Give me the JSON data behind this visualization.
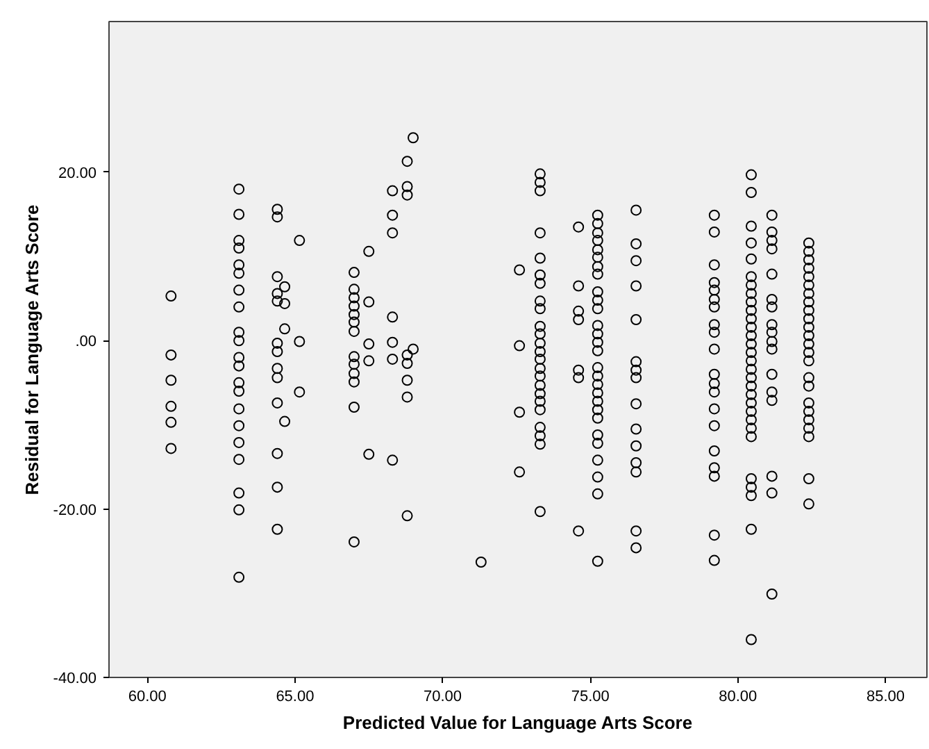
{
  "chart_data": {
    "type": "scatter",
    "xlabel": "Predicted Value for Language Arts Score",
    "ylabel": "Residual for Language Arts Score",
    "marker": "circle",
    "grid": false,
    "xlim": [
      58.7,
      86.4
    ],
    "ylim": [
      -40,
      37.9
    ],
    "xticks": [
      {
        "value": 60,
        "label": "60.00"
      },
      {
        "value": 65,
        "label": "65.00"
      },
      {
        "value": 70,
        "label": "70.00"
      },
      {
        "value": 75,
        "label": "75.00"
      },
      {
        "value": 80,
        "label": "80.00"
      },
      {
        "value": 85,
        "label": "85.00"
      }
    ],
    "yticks": [
      {
        "value": -40,
        "label": "-40.00"
      },
      {
        "value": -20,
        "label": "-20.00"
      },
      {
        "value": 0,
        "label": ".00"
      },
      {
        "value": 20,
        "label": "20.00"
      }
    ],
    "series": [
      {
        "color": "#000000",
        "x": [
          60.8,
          60.8,
          60.8,
          60.8,
          60.8,
          60.8
        ],
        "values": [
          5.3,
          -1.7,
          -4.7,
          -7.8,
          -9.7,
          -12.8
        ]
      },
      {
        "color": "#000000",
        "x": [
          63.1,
          63.1,
          63.1,
          63.1,
          63.1,
          63.1,
          63.1,
          63.1,
          63.1,
          63.1,
          63.1,
          63.1,
          63.1,
          63.1,
          63.1,
          63.1,
          63.1,
          63.1,
          63.1,
          63.1,
          63.1
        ],
        "values": [
          18.0,
          15.0,
          11.9,
          11.0,
          9.0,
          8.0,
          6.0,
          4.0,
          1.0,
          0,
          -2.0,
          -3.0,
          -5.0,
          -6.0,
          -8.1,
          -10.1,
          -12.1,
          -14.1,
          -18.1,
          -20.1,
          -28.1
        ]
      },
      {
        "color": "#000000",
        "x": [
          64.4,
          64.4,
          64.4,
          64.4,
          64.4,
          64.4,
          64.4,
          64.4,
          64.4,
          64.4,
          64.4,
          64.4,
          64.4
        ],
        "values": [
          15.6,
          14.7,
          7.6,
          5.6,
          4.7,
          -0.3,
          -1.3,
          -3.3,
          -4.4,
          -7.4,
          -13.4,
          -17.4,
          -22.4
        ]
      },
      {
        "color": "#000000",
        "x": [
          64.65,
          64.65,
          64.65,
          64.65
        ],
        "values": [
          6.4,
          4.4,
          1.4,
          -9.6
        ]
      },
      {
        "color": "#000000",
        "x": [
          65.15,
          65.15,
          65.15
        ],
        "values": [
          11.9,
          -0.1,
          -6.1
        ]
      },
      {
        "color": "#000000",
        "x": [
          67.0,
          67.0,
          67.0,
          67.0,
          67.0,
          67.0,
          67.0,
          67.0,
          67.0,
          67.0,
          67.0,
          67.0,
          67.0
        ],
        "values": [
          8.1,
          6.1,
          5.1,
          4.1,
          3.1,
          2.2,
          1.1,
          -1.9,
          -2.8,
          -3.9,
          -4.9,
          -7.9,
          -23.9
        ]
      },
      {
        "color": "#000000",
        "x": [
          67.5,
          67.5,
          67.5,
          67.5,
          67.5
        ],
        "values": [
          10.6,
          4.6,
          -0.4,
          -2.4,
          -13.5
        ]
      },
      {
        "color": "#000000",
        "x": [
          68.3,
          68.3,
          68.3,
          68.3,
          68.3,
          68.3,
          68.3
        ],
        "values": [
          17.8,
          14.9,
          12.8,
          2.8,
          -0.2,
          -2.2,
          -14.2
        ]
      },
      {
        "color": "#000000",
        "x": [
          68.8,
          68.8,
          68.8,
          68.8,
          68.8,
          68.8,
          68.8,
          68.8
        ],
        "values": [
          21.3,
          18.3,
          17.3,
          -1.7,
          -2.7,
          -4.7,
          -6.7,
          -20.8
        ]
      },
      {
        "color": "#000000",
        "x": [
          69.0,
          69.0
        ],
        "values": [
          24.1,
          -1.0
        ]
      },
      {
        "color": "#000000",
        "x": [
          71.3
        ],
        "values": [
          -26.3
        ]
      },
      {
        "color": "#000000",
        "x": [
          72.6,
          72.6,
          72.6,
          72.6
        ],
        "values": [
          8.4,
          -0.6,
          -8.5,
          -15.6
        ]
      },
      {
        "color": "#000000",
        "x": [
          73.3,
          73.3,
          73.3,
          73.3,
          73.3,
          73.3,
          73.3,
          73.3,
          73.3,
          73.3,
          73.3,
          73.3,
          73.3,
          73.3,
          73.3,
          73.3,
          73.3,
          73.3,
          73.3,
          73.3,
          73.3,
          73.3,
          73.3,
          73.3
        ],
        "values": [
          19.8,
          18.8,
          17.8,
          12.8,
          9.8,
          7.8,
          6.8,
          4.7,
          3.8,
          1.7,
          0.8,
          -0.3,
          -1.3,
          -2.2,
          -3.3,
          -4.2,
          -5.3,
          -6.3,
          -7.2,
          -8.2,
          -10.3,
          -11.3,
          -12.3,
          -20.3
        ]
      },
      {
        "color": "#000000",
        "x": [
          74.6,
          74.6,
          74.6,
          74.6,
          74.6,
          74.6,
          74.6
        ],
        "values": [
          13.5,
          6.5,
          3.5,
          2.5,
          -3.5,
          -4.4,
          -22.6
        ]
      },
      {
        "color": "#000000",
        "x": [
          75.25,
          75.25,
          75.25,
          75.25,
          75.25,
          75.25,
          75.25,
          75.25,
          75.25,
          75.25,
          75.25,
          75.25,
          75.25,
          75.25,
          75.25,
          75.25,
          75.25,
          75.25,
          75.25,
          75.25,
          75.25,
          75.25,
          75.25,
          75.25,
          75.25,
          75.25,
          75.25,
          75.25
        ],
        "values": [
          14.9,
          13.9,
          12.8,
          11.9,
          10.8,
          9.9,
          8.8,
          7.9,
          5.8,
          4.8,
          3.8,
          1.8,
          0.8,
          -0.2,
          -1.2,
          -3.2,
          -4.2,
          -5.2,
          -6.2,
          -7.2,
          -8.2,
          -9.2,
          -11.2,
          -12.2,
          -14.2,
          -16.2,
          -18.2,
          -26.2
        ]
      },
      {
        "color": "#000000",
        "x": [
          76.55,
          76.55,
          76.55,
          76.55,
          76.55,
          76.55,
          76.55,
          76.55,
          76.55,
          76.55,
          76.55,
          76.55,
          76.55,
          76.55,
          76.55
        ],
        "values": [
          15.5,
          11.5,
          9.5,
          6.5,
          2.5,
          -2.5,
          -3.5,
          -4.4,
          -7.5,
          -10.5,
          -12.5,
          -14.5,
          -15.6,
          -22.6,
          -24.6
        ]
      },
      {
        "color": "#000000",
        "x": [
          79.2,
          79.2,
          79.2,
          79.2,
          79.2,
          79.2,
          79.2,
          79.2,
          79.2,
          79.2,
          79.2,
          79.2,
          79.2,
          79.2,
          79.2,
          79.2,
          79.2,
          79.2,
          79.2,
          79.2
        ],
        "values": [
          14.9,
          12.9,
          9.0,
          6.9,
          6.0,
          4.9,
          4.0,
          1.9,
          1.0,
          -1.0,
          -4.0,
          -5.1,
          -6.1,
          -8.1,
          -10.1,
          -13.1,
          -15.1,
          -16.1,
          -23.1,
          -26.1
        ]
      },
      {
        "color": "#000000",
        "x": [
          80.45,
          80.45,
          80.45,
          80.45,
          80.45,
          80.45,
          80.45,
          80.45,
          80.45,
          80.45,
          80.45,
          80.45,
          80.45,
          80.45,
          80.45,
          80.45,
          80.45,
          80.45,
          80.45,
          80.45,
          80.45,
          80.45,
          80.45,
          80.45,
          80.45,
          80.45,
          80.45,
          80.45,
          80.45,
          80.45
        ],
        "values": [
          19.7,
          17.6,
          13.6,
          11.6,
          9.7,
          7.6,
          6.6,
          5.6,
          4.6,
          3.6,
          2.6,
          1.6,
          0.6,
          -0.4,
          -1.4,
          -2.4,
          -3.4,
          -4.4,
          -5.4,
          -6.4,
          -7.4,
          -8.4,
          -9.4,
          -10.4,
          -11.4,
          -16.4,
          -17.4,
          -18.4,
          -22.4,
          -35.5
        ]
      },
      {
        "color": "#000000",
        "x": [
          81.15,
          81.15,
          81.15,
          81.15,
          81.15,
          81.15,
          81.15,
          81.15,
          81.15,
          81.15,
          81.15,
          81.15,
          81.15,
          81.15,
          81.15,
          81.15,
          81.15
        ],
        "values": [
          14.9,
          12.9,
          11.9,
          10.9,
          7.9,
          4.9,
          4.0,
          1.9,
          1.0,
          -0.1,
          -1.0,
          -4.0,
          -6.1,
          -7.1,
          -16.1,
          -18.1,
          -30.1
        ]
      },
      {
        "color": "#000000",
        "x": [
          82.4,
          82.4,
          82.4,
          82.4,
          82.4,
          82.4,
          82.4,
          82.4,
          82.4,
          82.4,
          82.4,
          82.4,
          82.4,
          82.4,
          82.4,
          82.4,
          82.4,
          82.4,
          82.4,
          82.4,
          82.4,
          82.4,
          82.4,
          82.4
        ],
        "values": [
          11.6,
          10.6,
          9.6,
          8.6,
          7.6,
          6.6,
          5.6,
          4.6,
          3.6,
          2.6,
          1.6,
          0.6,
          -0.4,
          -1.4,
          -2.4,
          -4.4,
          -5.4,
          -7.4,
          -8.4,
          -9.4,
          -10.4,
          -11.4,
          -16.4,
          -19.4
        ]
      }
    ]
  }
}
